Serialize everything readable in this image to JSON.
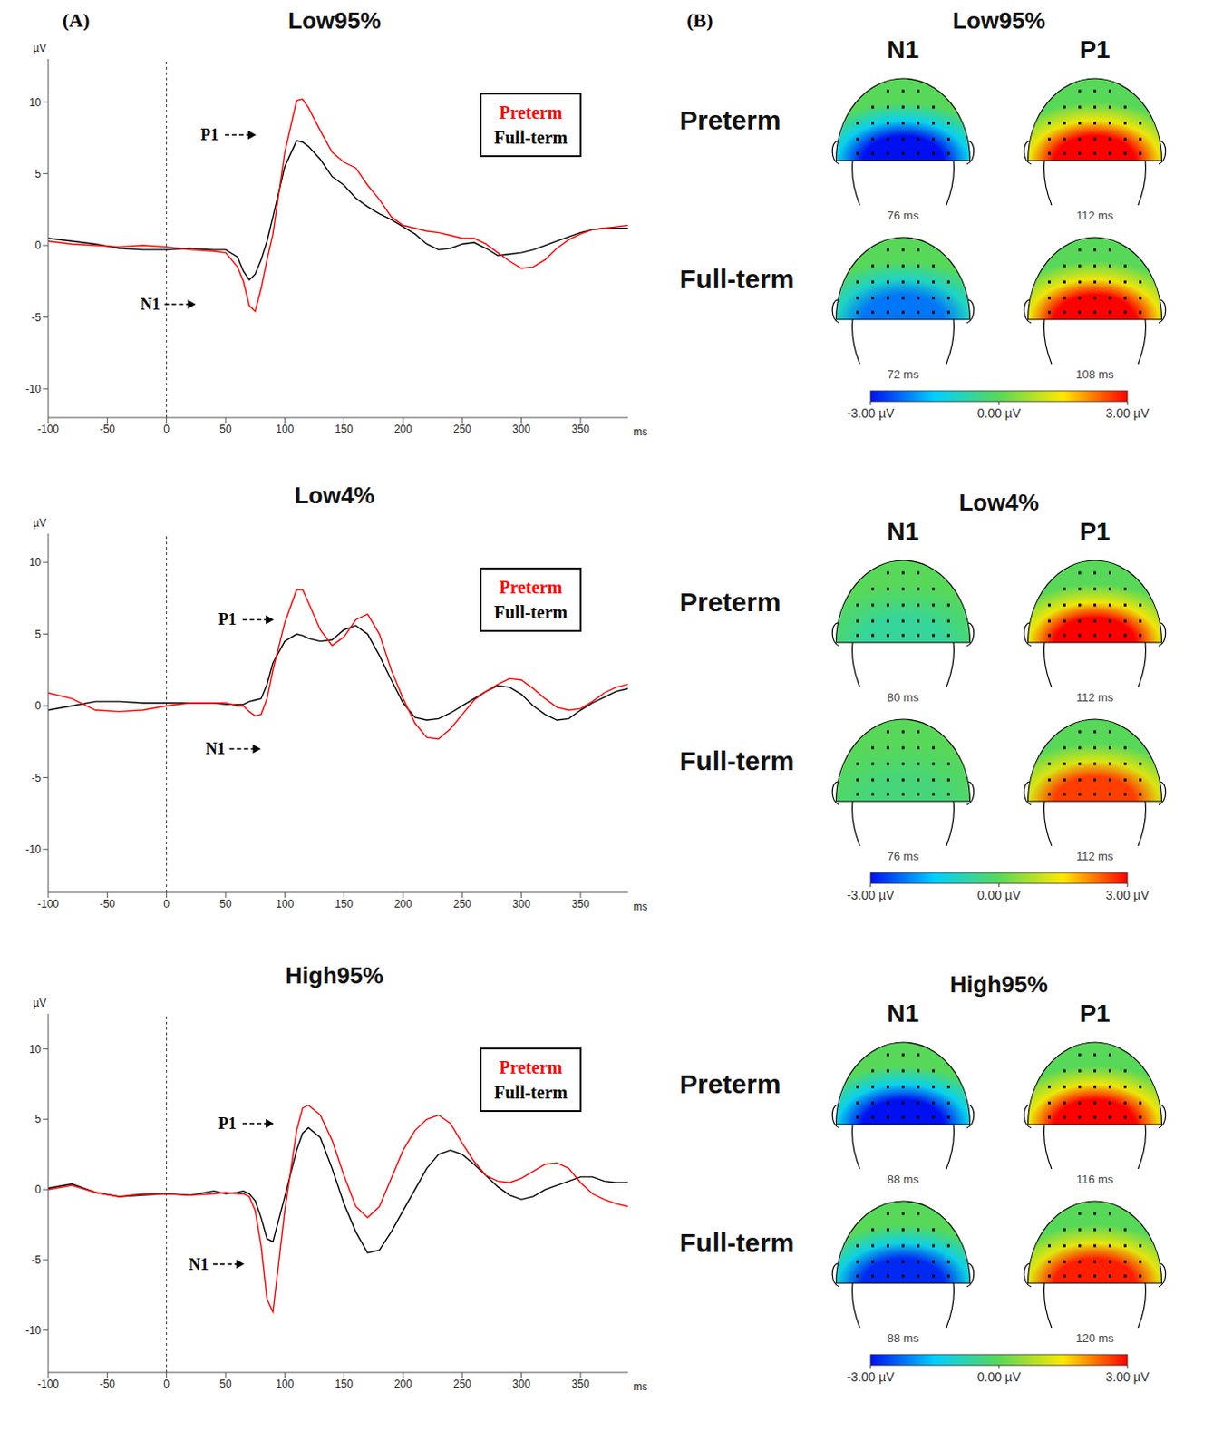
{
  "panel_labels": [
    "(A)",
    "(B)"
  ],
  "chart_data": [
    {
      "type": "line",
      "title": "Low95%",
      "x_label": "ms",
      "y_label": "µV",
      "legend": "upper right",
      "x": [
        -100,
        -80,
        -60,
        -40,
        -20,
        0,
        20,
        40,
        50,
        60,
        65,
        70,
        75,
        80,
        85,
        90,
        100,
        110,
        115,
        120,
        130,
        140,
        150,
        160,
        170,
        180,
        190,
        200,
        210,
        220,
        230,
        240,
        250,
        260,
        270,
        280,
        290,
        300,
        310,
        320,
        330,
        340,
        350,
        360,
        370,
        380,
        390
      ],
      "series": [
        {
          "name": "Preterm",
          "color": "#ff0000",
          "values": [
            0.3,
            0.1,
            0,
            -0.1,
            0,
            -0.1,
            -0.3,
            -0.4,
            -0.5,
            -1.5,
            -2.5,
            -4.2,
            -4.6,
            -3,
            -1,
            0.8,
            6.5,
            10.1,
            10.2,
            9.6,
            8,
            6.5,
            5.8,
            5.4,
            4.2,
            3.2,
            2,
            1.4,
            1.2,
            1,
            0.9,
            0.7,
            0.5,
            0.5,
            0.1,
            -0.5,
            -1.1,
            -1.6,
            -1.5,
            -1,
            -0.2,
            0.4,
            0.8,
            1.1,
            1.2,
            1.3,
            1.4
          ]
        },
        {
          "name": "Full-term",
          "color": "#000000",
          "values": [
            0.5,
            0.3,
            0.1,
            -0.2,
            -0.3,
            -0.3,
            -0.2,
            -0.3,
            -0.3,
            -0.8,
            -1.8,
            -2.4,
            -2,
            -1,
            0.3,
            2,
            5.5,
            7.3,
            7.2,
            6.9,
            6,
            4.8,
            4.2,
            3.3,
            2.7,
            2.2,
            1.8,
            1.3,
            0.8,
            0.1,
            -0.3,
            -0.2,
            0.1,
            0.2,
            -0.2,
            -0.7,
            -0.6,
            -0.5,
            -0.3,
            0,
            0.3,
            0.6,
            0.9,
            1.1,
            1.2,
            1.2,
            1.2
          ]
        }
      ],
      "xlim": [
        -100,
        390
      ],
      "xticks": [
        -100,
        -50,
        0,
        50,
        100,
        150,
        200,
        250,
        300,
        350
      ],
      "ylim": [
        -12,
        13
      ],
      "yticks": [
        -10,
        -5,
        0,
        5,
        10
      ],
      "vlines": [
        0
      ],
      "annotations": [
        {
          "text": "P1",
          "x": 29,
          "y": 7.7
        },
        {
          "text": "N1",
          "x": -22,
          "y": -4.1
        }
      ]
    },
    {
      "type": "line",
      "title": "Low4%",
      "x_label": "ms",
      "y_label": "µV",
      "legend": "upper right",
      "x": [
        -100,
        -80,
        -60,
        -40,
        -20,
        0,
        20,
        40,
        50,
        60,
        65,
        70,
        75,
        80,
        85,
        90,
        100,
        110,
        115,
        120,
        130,
        140,
        150,
        160,
        170,
        180,
        190,
        200,
        210,
        220,
        230,
        240,
        250,
        260,
        270,
        280,
        290,
        300,
        310,
        320,
        330,
        340,
        350,
        360,
        370,
        380,
        390
      ],
      "series": [
        {
          "name": "Preterm",
          "color": "#ff0000",
          "values": [
            0.9,
            0.5,
            -0.3,
            -0.4,
            -0.3,
            0,
            0.2,
            0.2,
            0.2,
            0,
            0,
            -0.4,
            -0.7,
            -0.6,
            0.5,
            2.5,
            5.8,
            8.1,
            8.1,
            7.2,
            5.3,
            4.2,
            4.8,
            6,
            6.4,
            5,
            2.5,
            0.5,
            -1.2,
            -2.2,
            -2.3,
            -1.6,
            -0.6,
            0.4,
            1,
            1.5,
            1.9,
            1.8,
            1.2,
            0.5,
            -0.1,
            -0.3,
            -0.2,
            0.3,
            0.9,
            1.3,
            1.5
          ]
        },
        {
          "name": "Full-term",
          "color": "#000000",
          "values": [
            -0.3,
            0,
            0.3,
            0.3,
            0.2,
            0.2,
            0.2,
            0.2,
            0.1,
            0.1,
            0.1,
            0.3,
            0.4,
            0.5,
            1.5,
            3,
            4.5,
            5,
            4.9,
            4.7,
            4.5,
            4.6,
            5.3,
            5.6,
            5,
            3.5,
            1.8,
            0.2,
            -0.8,
            -1,
            -0.9,
            -0.5,
            0,
            0.5,
            1,
            1.4,
            1.3,
            0.8,
            0,
            -0.6,
            -1,
            -0.9,
            -0.3,
            0.2,
            0.6,
            1,
            1.2
          ]
        }
      ],
      "xlim": [
        -100,
        390
      ],
      "xticks": [
        -100,
        -50,
        0,
        50,
        100,
        150,
        200,
        250,
        300,
        350
      ],
      "ylim": [
        -13,
        12
      ],
      "yticks": [
        -10,
        -5,
        0,
        5,
        10
      ],
      "vlines": [
        0
      ],
      "annotations": [
        {
          "text": "P1",
          "x": 44,
          "y": 6
        },
        {
          "text": "N1",
          "x": 33,
          "y": -3
        }
      ]
    },
    {
      "type": "line",
      "title": "High95%",
      "x_label": "ms",
      "y_label": "µV",
      "legend": "upper right",
      "x": [
        -100,
        -80,
        -60,
        -40,
        -20,
        0,
        20,
        40,
        50,
        60,
        65,
        70,
        75,
        80,
        85,
        90,
        100,
        110,
        115,
        120,
        130,
        140,
        150,
        160,
        170,
        180,
        190,
        200,
        210,
        220,
        230,
        240,
        250,
        260,
        270,
        280,
        290,
        300,
        310,
        320,
        330,
        340,
        350,
        360,
        370,
        380,
        390
      ],
      "series": [
        {
          "name": "Preterm",
          "color": "#ff0000",
          "values": [
            0,
            0.3,
            -0.2,
            -0.5,
            -0.3,
            -0.3,
            -0.4,
            -0.3,
            -0.2,
            -0.3,
            -0.3,
            -0.5,
            -1.5,
            -4,
            -7.8,
            -8.7,
            -1.5,
            4.2,
            5.8,
            6,
            5.3,
            3.5,
            1,
            -1.2,
            -2,
            -1.2,
            0.8,
            2.8,
            4.2,
            5,
            5.3,
            4.7,
            3.3,
            2,
            1,
            0.6,
            0.5,
            0.8,
            1.3,
            1.8,
            1.9,
            1.5,
            0.5,
            -0.3,
            -0.7,
            -1,
            -1.2
          ]
        },
        {
          "name": "Full-term",
          "color": "#000000",
          "values": [
            0.1,
            0.4,
            -0.2,
            -0.5,
            -0.4,
            -0.3,
            -0.4,
            -0.1,
            -0.3,
            -0.2,
            -0.1,
            -0.3,
            -0.8,
            -2,
            -3.5,
            -3.7,
            -0.5,
            2.8,
            4,
            4.4,
            3.7,
            1.5,
            -1,
            -3,
            -4.5,
            -4.3,
            -3,
            -1.5,
            0,
            1.5,
            2.5,
            2.8,
            2.5,
            1.8,
            1,
            0.2,
            -0.4,
            -0.7,
            -0.5,
            0,
            0.3,
            0.6,
            0.9,
            0.9,
            0.6,
            0.5,
            0.5
          ]
        }
      ],
      "xlim": [
        -100,
        390
      ],
      "xticks": [
        -100,
        -50,
        0,
        50,
        100,
        150,
        200,
        250,
        300,
        350
      ],
      "ylim": [
        -13,
        12.5
      ],
      "yticks": [
        -10,
        -5,
        0,
        5,
        10
      ],
      "vlines": [
        0
      ],
      "annotations": [
        {
          "text": "P1",
          "x": 44,
          "y": 4.7
        },
        {
          "text": "N1",
          "x": 19,
          "y": -5.3
        }
      ]
    }
  ],
  "topomaps": [
    {
      "title": "Low95%",
      "components": [
        "N1",
        "P1"
      ],
      "rows": [
        {
          "group": "Preterm",
          "maps": [
            {
              "latency": "76 ms",
              "amplitude": -3
            },
            {
              "latency": "112 ms",
              "amplitude": 3
            }
          ]
        },
        {
          "group": "Full-term",
          "maps": [
            {
              "latency": "72 ms",
              "amplitude": -2.2
            },
            {
              "latency": "108 ms",
              "amplitude": 3
            }
          ]
        }
      ],
      "colorbar": {
        "range": [
          -3,
          3
        ],
        "ticks": [
          {
            "value": -3,
            "label": "-3.00 µV"
          },
          {
            "value": 0,
            "label": "0.00 µV"
          },
          {
            "value": 3,
            "label": "3.00 µV"
          }
        ]
      }
    },
    {
      "title": "Low4%",
      "components": [
        "N1",
        "P1"
      ],
      "rows": [
        {
          "group": "Preterm",
          "maps": [
            {
              "latency": "80 ms",
              "amplitude": -0.6
            },
            {
              "latency": "112 ms",
              "amplitude": 3
            }
          ]
        },
        {
          "group": "Full-term",
          "maps": [
            {
              "latency": "76 ms",
              "amplitude": -0.3
            },
            {
              "latency": "112 ms",
              "amplitude": 2.6
            }
          ]
        }
      ],
      "colorbar": {
        "range": [
          -3,
          3
        ],
        "ticks": [
          {
            "value": -3,
            "label": "-3.00 µV"
          },
          {
            "value": 0,
            "label": "0.00 µV"
          },
          {
            "value": 3,
            "label": "3.00 µV"
          }
        ]
      }
    },
    {
      "title": "High95%",
      "components": [
        "N1",
        "P1"
      ],
      "rows": [
        {
          "group": "Preterm",
          "maps": [
            {
              "latency": "88 ms",
              "amplitude": -3
            },
            {
              "latency": "116 ms",
              "amplitude": 3
            }
          ]
        },
        {
          "group": "Full-term",
          "maps": [
            {
              "latency": "88 ms",
              "amplitude": -2.8
            },
            {
              "latency": "120 ms",
              "amplitude": 2.8
            }
          ]
        }
      ],
      "colorbar": {
        "range": [
          -3,
          3
        ],
        "ticks": [
          {
            "value": -3,
            "label": "-3.00 µV"
          },
          {
            "value": 0,
            "label": "0.00 µV"
          },
          {
            "value": 3,
            "label": "3.00 µV"
          }
        ]
      }
    }
  ]
}
